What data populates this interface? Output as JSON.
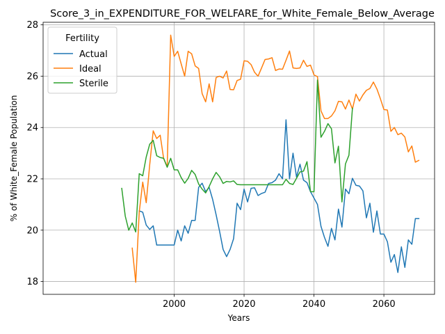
{
  "chart_data": {
    "type": "line",
    "title": "Score_3_in_EXPENDITURE_FOR_WELFARE_for_White_Female_Below_Average",
    "xlabel": "Years",
    "ylabel": "% of White_Female Population",
    "xlim": [
      1962.5,
      2074.5
    ],
    "ylim": [
      17.5,
      28.1
    ],
    "xticks": [
      2000,
      2020,
      2040,
      2060
    ],
    "yticks": [
      18,
      20,
      22,
      24,
      26,
      28
    ],
    "grid": true,
    "legend": {
      "title": "Fertility",
      "position": "upper left"
    },
    "series": [
      {
        "name": "Actual",
        "color": "#1f77b4",
        "x": [
          1990,
          1991,
          1992,
          1993,
          1994,
          1995,
          1996,
          1997,
          1998,
          1999,
          2000,
          2001,
          2002,
          2003,
          2004,
          2005,
          2006,
          2007,
          2008,
          2009,
          2010,
          2011,
          2012,
          2013,
          2014,
          2015,
          2016,
          2017,
          2018,
          2019,
          2020,
          2021,
          2022,
          2023,
          2024,
          2025,
          2026,
          2027,
          2028,
          2029,
          2030,
          2031,
          2032,
          2033,
          2034,
          2035,
          2036,
          2037,
          2038,
          2039,
          2040,
          2041,
          2042,
          2043,
          2044,
          2045,
          2046,
          2047,
          2048,
          2049,
          2050,
          2051,
          2052,
          2053,
          2054,
          2055,
          2056,
          2057,
          2058,
          2059,
          2060,
          2061,
          2062,
          2063,
          2064,
          2065,
          2066,
          2067,
          2068,
          2069,
          2070
        ],
        "values": [
          20.75,
          20.7,
          20.2,
          20.03,
          20.17,
          19.42,
          19.42,
          19.42,
          19.42,
          19.42,
          19.42,
          20.0,
          19.58,
          20.17,
          19.88,
          20.38,
          20.38,
          21.67,
          21.83,
          21.5,
          21.67,
          21.2,
          20.6,
          19.95,
          19.25,
          18.97,
          19.25,
          19.67,
          21.05,
          20.8,
          21.6,
          21.1,
          21.63,
          21.65,
          21.35,
          21.43,
          21.48,
          21.82,
          21.85,
          21.95,
          22.2,
          22.0,
          24.3,
          22.0,
          23.0,
          22.07,
          22.57,
          21.95,
          21.85,
          21.5,
          21.25,
          21.0,
          20.15,
          19.72,
          19.37,
          20.07,
          19.62,
          20.82,
          20.12,
          21.6,
          21.42,
          22.02,
          21.75,
          21.72,
          21.53,
          20.48,
          21.05,
          19.92,
          20.75,
          19.85,
          19.85,
          19.55,
          18.75,
          19.05,
          18.35,
          19.35,
          18.55,
          19.62,
          19.45,
          20.45,
          20.45
        ]
      },
      {
        "name": "Ideal",
        "color": "#ff7f0e",
        "x": [
          1988,
          1989,
          1990,
          1991,
          1992,
          1993,
          1994,
          1995,
          1996,
          1997,
          1998,
          1999,
          2000,
          2001,
          2002,
          2003,
          2004,
          2005,
          2006,
          2007,
          2008,
          2009,
          2010,
          2011,
          2012,
          2013,
          2014,
          2015,
          2016,
          2017,
          2018,
          2019,
          2020,
          2021,
          2022,
          2023,
          2024,
          2025,
          2026,
          2027,
          2028,
          2029,
          2030,
          2031,
          2032,
          2033,
          2034,
          2035,
          2036,
          2037,
          2038,
          2039,
          2040,
          2041,
          2042,
          2043,
          2044,
          2045,
          2046,
          2047,
          2048,
          2049,
          2050,
          2051,
          2052,
          2053,
          2054,
          2055,
          2056,
          2057,
          2058,
          2059,
          2060,
          2061,
          2062,
          2063,
          2064,
          2065,
          2066,
          2067,
          2068,
          2069,
          2070
        ],
        "values": [
          19.3,
          17.97,
          20.7,
          21.87,
          21.07,
          22.55,
          23.87,
          23.57,
          23.7,
          22.78,
          22.47,
          27.6,
          26.77,
          26.97,
          26.48,
          26.0,
          26.97,
          26.87,
          26.4,
          26.3,
          25.32,
          25.0,
          25.7,
          25.0,
          25.95,
          26.0,
          25.93,
          26.2,
          25.48,
          25.47,
          25.83,
          25.88,
          26.6,
          26.58,
          26.45,
          26.15,
          26.0,
          26.32,
          26.65,
          26.67,
          26.72,
          26.22,
          26.28,
          26.27,
          26.62,
          26.98,
          26.32,
          26.3,
          26.32,
          26.62,
          26.38,
          26.43,
          26.05,
          25.98,
          24.65,
          24.35,
          24.35,
          24.45,
          24.65,
          25.02,
          25.0,
          24.72,
          25.07,
          24.72,
          25.3,
          25.03,
          25.27,
          25.45,
          25.52,
          25.77,
          25.5,
          25.12,
          24.7,
          24.68,
          23.85,
          24.0,
          23.72,
          23.78,
          23.63,
          23.05,
          23.28,
          22.65,
          22.72
        ]
      },
      {
        "name": "Sterile",
        "color": "#2ca02c",
        "x": [
          1985,
          1986,
          1987,
          1988,
          1989,
          1990,
          1991,
          1992,
          1993,
          1994,
          1995,
          1996,
          1997,
          1998,
          1999,
          2000,
          2001,
          2002,
          2003,
          2004,
          2005,
          2006,
          2007,
          2008,
          2009,
          2010,
          2011,
          2012,
          2013,
          2014,
          2015,
          2016,
          2017,
          2018,
          2019,
          2020,
          2021,
          2022,
          2023,
          2024,
          2025,
          2026,
          2027,
          2028,
          2029,
          2030,
          2031,
          2032,
          2033,
          2034,
          2035,
          2036,
          2037,
          2038,
          2039,
          2040,
          2041,
          2042,
          2043,
          2044,
          2045,
          2046,
          2047,
          2048,
          2049,
          2050,
          2051
        ],
        "values": [
          21.63,
          20.55,
          20.0,
          20.28,
          19.93,
          22.2,
          22.12,
          22.85,
          23.35,
          23.5,
          22.9,
          22.83,
          22.8,
          22.45,
          22.8,
          22.35,
          22.35,
          22.05,
          21.83,
          22.02,
          22.33,
          22.17,
          21.8,
          21.6,
          21.45,
          21.7,
          22.0,
          22.25,
          22.08,
          21.82,
          21.9,
          21.88,
          21.92,
          21.78,
          21.77,
          21.77,
          21.77,
          21.77,
          21.77,
          21.77,
          21.77,
          21.77,
          21.77,
          21.77,
          21.77,
          21.77,
          21.77,
          21.98,
          21.82,
          21.78,
          22.02,
          22.27,
          22.3,
          22.67,
          21.5,
          21.5,
          25.85,
          23.62,
          23.85,
          24.15,
          23.95,
          22.62,
          23.27,
          21.1,
          22.58,
          22.92,
          24.75
        ]
      }
    ]
  }
}
